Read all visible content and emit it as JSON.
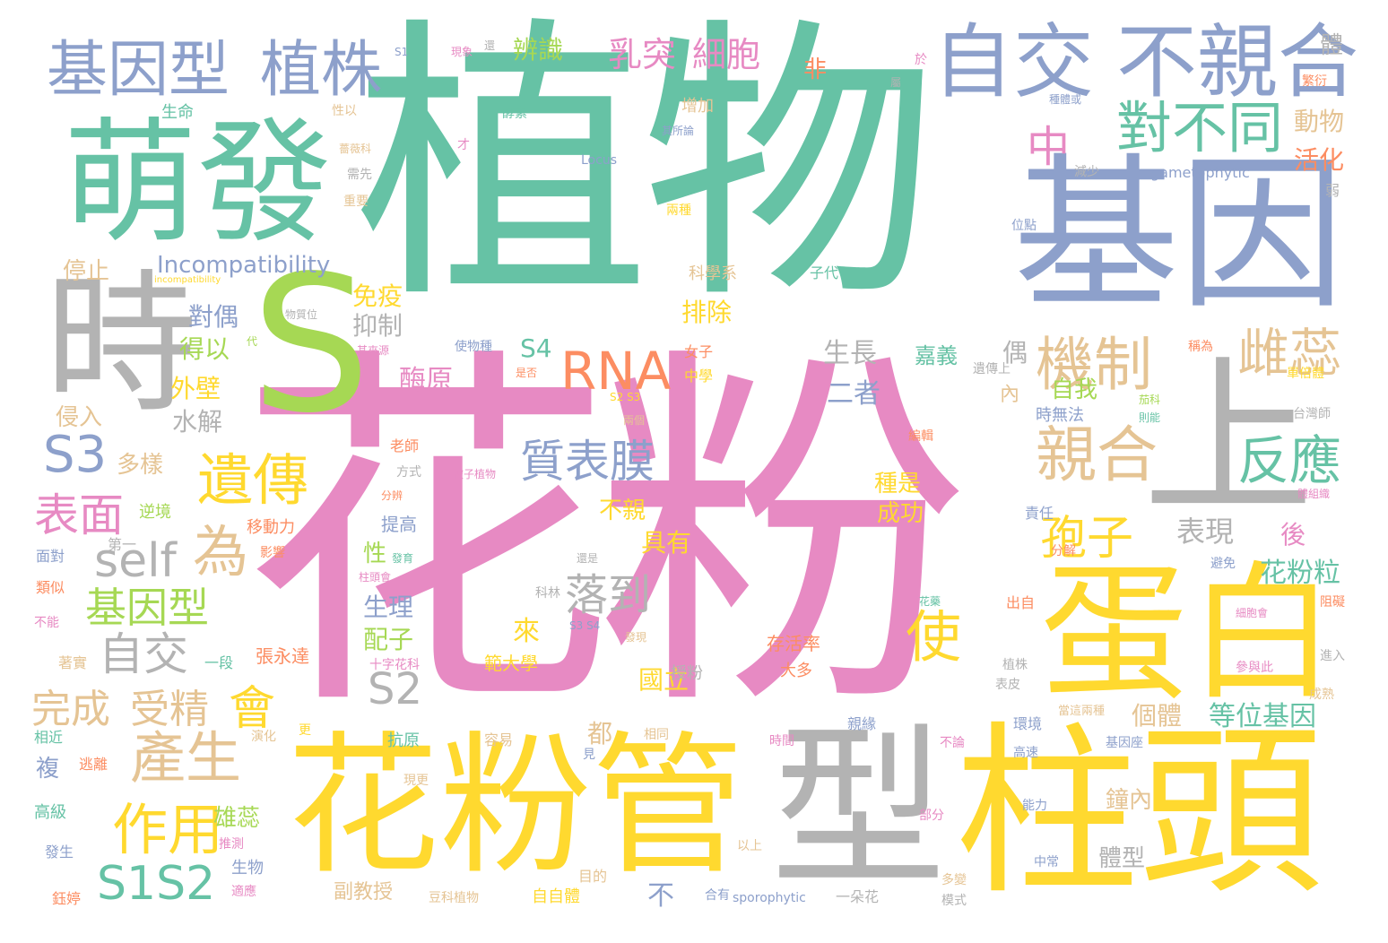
{
  "palette": {
    "green": "#66c2a5",
    "pink": "#e78ac3",
    "yellow": "#ffd92f",
    "gray": "#b3b3b3",
    "blue": "#8da0cb",
    "lime": "#a6d854",
    "orange": "#fc8d62",
    "tan": "#e5c494"
  },
  "words": [
    {
      "text": "植物",
      "c": "green"
    },
    {
      "text": "花粉",
      "c": "pink"
    },
    {
      "text": "基因",
      "c": "blue"
    },
    {
      "text": "花粉管",
      "c": "yellow"
    },
    {
      "text": "柱頭",
      "c": "yellow"
    },
    {
      "text": "型",
      "c": "gray"
    },
    {
      "text": "蛋白",
      "c": "yellow"
    },
    {
      "text": "萌發",
      "c": "green"
    },
    {
      "text": "時",
      "c": "gray"
    },
    {
      "text": "S",
      "c": "lime"
    },
    {
      "text": "上",
      "c": "gray"
    },
    {
      "text": "自交",
      "c": "blue"
    },
    {
      "text": "不親合",
      "c": "blue"
    },
    {
      "text": "基因型",
      "c": "blue"
    },
    {
      "text": "植株",
      "c": "blue"
    },
    {
      "text": "對不同",
      "c": "green"
    },
    {
      "text": "機制",
      "c": "tan"
    },
    {
      "text": "雌蕊",
      "c": "tan"
    },
    {
      "text": "親合",
      "c": "tan"
    },
    {
      "text": "反應",
      "c": "green"
    },
    {
      "text": "RNA",
      "c": "orange"
    },
    {
      "text": "遺傳",
      "c": "yellow"
    },
    {
      "text": "質表膜",
      "c": "blue"
    },
    {
      "text": "孢子",
      "c": "yellow"
    },
    {
      "text": "產生",
      "c": "tan"
    },
    {
      "text": "作用",
      "c": "yellow"
    },
    {
      "text": "S1S2",
      "c": "green"
    },
    {
      "text": "S3",
      "c": "blue"
    },
    {
      "text": "表面",
      "c": "pink"
    },
    {
      "text": "self",
      "c": "gray"
    },
    {
      "text": "為",
      "c": "tan"
    },
    {
      "text": "基因型",
      "c": "lime"
    },
    {
      "text": "自交",
      "c": "gray"
    },
    {
      "text": "會",
      "c": "yellow"
    },
    {
      "text": "S2",
      "c": "gray"
    },
    {
      "text": "落到",
      "c": "gray"
    },
    {
      "text": "使",
      "c": "yellow"
    },
    {
      "text": "完成",
      "c": "tan"
    },
    {
      "text": "受精",
      "c": "tan"
    },
    {
      "text": "中",
      "c": "pink"
    },
    {
      "text": "乳突",
      "c": "pink"
    },
    {
      "text": "細胞",
      "c": "pink"
    },
    {
      "text": "Incompatibility",
      "c": "blue"
    },
    {
      "text": "等位基因",
      "c": "green"
    },
    {
      "text": "花粉粒",
      "c": "green"
    },
    {
      "text": "表現",
      "c": "gray"
    },
    {
      "text": "生長",
      "c": "gray"
    },
    {
      "text": "二者",
      "c": "blue"
    },
    {
      "text": "辨識",
      "c": "lime"
    },
    {
      "text": "動物",
      "c": "tan"
    },
    {
      "text": "活化",
      "c": "orange"
    },
    {
      "text": "免疫",
      "c": "yellow"
    },
    {
      "text": "抑制",
      "c": "gray"
    },
    {
      "text": "排除",
      "c": "yellow"
    },
    {
      "text": "酶原",
      "c": "pink"
    },
    {
      "text": "S4",
      "c": "green"
    },
    {
      "text": "對偶",
      "c": "blue"
    },
    {
      "text": "得以",
      "c": "lime"
    },
    {
      "text": "外壁",
      "c": "yellow"
    },
    {
      "text": "水解",
      "c": "gray"
    },
    {
      "text": "侵入",
      "c": "tan"
    },
    {
      "text": "多樣",
      "c": "tan"
    },
    {
      "text": "停止",
      "c": "tan"
    },
    {
      "text": "具有",
      "c": "yellow"
    },
    {
      "text": "不親",
      "c": "yellow"
    },
    {
      "text": "生理",
      "c": "blue"
    },
    {
      "text": "配子",
      "c": "lime"
    },
    {
      "text": "來",
      "c": "yellow"
    },
    {
      "text": "個體",
      "c": "tan"
    },
    {
      "text": "國立",
      "c": "yellow"
    },
    {
      "text": "嘉義",
      "c": "green"
    },
    {
      "text": "自我",
      "c": "lime"
    },
    {
      "text": "雄蕊",
      "c": "lime"
    },
    {
      "text": "成功",
      "c": "yellow"
    },
    {
      "text": "種是",
      "c": "yellow"
    },
    {
      "text": "鐘內",
      "c": "tan"
    },
    {
      "text": "體型",
      "c": "gray"
    },
    {
      "text": "副教授",
      "c": "tan"
    },
    {
      "text": "生物",
      "c": "blue"
    },
    {
      "text": "張永達",
      "c": "orange"
    },
    {
      "text": "存活率",
      "c": "orange"
    },
    {
      "text": "大多",
      "c": "orange"
    },
    {
      "text": "範大學",
      "c": "yellow"
    },
    {
      "text": "十字花科",
      "c": "pink"
    },
    {
      "text": "gametophytic",
      "c": "blue"
    },
    {
      "text": "sporophytic",
      "c": "blue"
    },
    {
      "text": "Locus",
      "c": "blue"
    },
    {
      "text": "incompatibility",
      "c": "yellow"
    },
    {
      "text": "偶",
      "c": "gray"
    },
    {
      "text": "內",
      "c": "tan"
    },
    {
      "text": "都",
      "c": "tan"
    },
    {
      "text": "複",
      "c": "blue"
    },
    {
      "text": "不",
      "c": "blue"
    },
    {
      "text": "後",
      "c": "pink"
    },
    {
      "text": "性",
      "c": "lime"
    },
    {
      "text": "非",
      "c": "orange"
    },
    {
      "text": "體",
      "c": "gray"
    },
    {
      "text": "時無法",
      "c": "blue"
    },
    {
      "text": "責任",
      "c": "blue"
    },
    {
      "text": "提高",
      "c": "blue"
    },
    {
      "text": "移動力",
      "c": "orange"
    },
    {
      "text": "逆境",
      "c": "lime"
    },
    {
      "text": "第一",
      "c": "gray"
    },
    {
      "text": "影響",
      "c": "orange"
    },
    {
      "text": "面對",
      "c": "blue"
    },
    {
      "text": "類似",
      "c": "orange"
    },
    {
      "text": "不能",
      "c": "pink"
    },
    {
      "text": "著實",
      "c": "tan"
    },
    {
      "text": "一段",
      "c": "green"
    },
    {
      "text": "相近",
      "c": "green"
    },
    {
      "text": "逃離",
      "c": "orange"
    },
    {
      "text": "高級",
      "c": "green"
    },
    {
      "text": "發生",
      "c": "blue"
    },
    {
      "text": "鈺婷",
      "c": "orange"
    },
    {
      "text": "適應",
      "c": "pink"
    },
    {
      "text": "推測",
      "c": "pink"
    },
    {
      "text": "演化",
      "c": "tan"
    },
    {
      "text": "更",
      "c": "yellow"
    },
    {
      "text": "抗原",
      "c": "green"
    },
    {
      "text": "容易",
      "c": "tan"
    },
    {
      "text": "現更",
      "c": "tan"
    },
    {
      "text": "見",
      "c": "blue"
    },
    {
      "text": "相同",
      "c": "tan"
    },
    {
      "text": "授粉",
      "c": "gray"
    },
    {
      "text": "時間",
      "c": "pink"
    },
    {
      "text": "親緣",
      "c": "blue"
    },
    {
      "text": "不論",
      "c": "pink"
    },
    {
      "text": "高速",
      "c": "blue"
    },
    {
      "text": "基因座",
      "c": "blue"
    },
    {
      "text": "部分",
      "c": "pink"
    },
    {
      "text": "能力",
      "c": "blue"
    },
    {
      "text": "以上",
      "c": "tan"
    },
    {
      "text": "中常",
      "c": "blue"
    },
    {
      "text": "一朵花",
      "c": "gray"
    },
    {
      "text": "合有",
      "c": "blue"
    },
    {
      "text": "多變",
      "c": "tan"
    },
    {
      "text": "模式",
      "c": "gray"
    },
    {
      "text": "自自體",
      "c": "yellow"
    },
    {
      "text": "目的",
      "c": "tan"
    },
    {
      "text": "豆科植物",
      "c": "tan"
    },
    {
      "text": "當這兩種",
      "c": "tan"
    },
    {
      "text": "環境",
      "c": "blue"
    },
    {
      "text": "表皮",
      "c": "gray"
    },
    {
      "text": "植株",
      "c": "gray"
    },
    {
      "text": "參與此",
      "c": "pink"
    },
    {
      "text": "進入",
      "c": "gray"
    },
    {
      "text": "成熟",
      "c": "tan"
    },
    {
      "text": "細胞會",
      "c": "pink"
    },
    {
      "text": "阻礙",
      "c": "orange"
    },
    {
      "text": "避免",
      "c": "blue"
    },
    {
      "text": "分解",
      "c": "orange"
    },
    {
      "text": "體組織",
      "c": "pink"
    },
    {
      "text": "台灣師",
      "c": "gray"
    },
    {
      "text": "茄科",
      "c": "lime"
    },
    {
      "text": "則能",
      "c": "green"
    },
    {
      "text": "單倍體",
      "c": "yellow"
    },
    {
      "text": "稱為",
      "c": "orange"
    },
    {
      "text": "遺傳上",
      "c": "gray"
    },
    {
      "text": "弱",
      "c": "gray"
    },
    {
      "text": "繁衍",
      "c": "orange"
    },
    {
      "text": "種體或",
      "c": "blue"
    },
    {
      "text": "屬",
      "c": "gray"
    },
    {
      "text": "於",
      "c": "pink"
    },
    {
      "text": "增加",
      "c": "tan"
    },
    {
      "text": "其所論",
      "c": "blue"
    },
    {
      "text": "減少",
      "c": "gray"
    },
    {
      "text": "位點",
      "c": "blue"
    },
    {
      "text": "子代",
      "c": "green"
    },
    {
      "text": "科學系",
      "c": "tan"
    },
    {
      "text": "兩種",
      "c": "yellow"
    },
    {
      "text": "女子",
      "c": "orange"
    },
    {
      "text": "中學",
      "c": "yellow"
    },
    {
      "text": "S2 S3",
      "c": "yellow"
    },
    {
      "text": "兩個",
      "c": "tan"
    },
    {
      "text": "是否",
      "c": "orange"
    },
    {
      "text": "被子植物",
      "c": "pink"
    },
    {
      "text": "編輯",
      "c": "orange"
    },
    {
      "text": "方式",
      "c": "gray"
    },
    {
      "text": "分辨",
      "c": "orange"
    },
    {
      "text": "還是",
      "c": "gray"
    },
    {
      "text": "科林",
      "c": "gray"
    },
    {
      "text": "S3 S4",
      "c": "blue"
    },
    {
      "text": "發現",
      "c": "tan"
    },
    {
      "text": "發育",
      "c": "green"
    },
    {
      "text": "柱頭會",
      "c": "pink"
    },
    {
      "text": "老師",
      "c": "orange"
    },
    {
      "text": "花藥",
      "c": "green"
    },
    {
      "text": "出自",
      "c": "orange"
    },
    {
      "text": "使物種",
      "c": "blue"
    },
    {
      "text": "其來源",
      "c": "pink"
    },
    {
      "text": "物質位",
      "c": "gray"
    },
    {
      "text": "代",
      "c": "lime"
    },
    {
      "text": "酵素",
      "c": "green"
    },
    {
      "text": "S1",
      "c": "blue"
    },
    {
      "text": "現象",
      "c": "pink"
    },
    {
      "text": "還",
      "c": "gray"
    },
    {
      "text": "生命",
      "c": "green"
    },
    {
      "text": "性以",
      "c": "tan"
    },
    {
      "text": "薔薇科",
      "c": "tan"
    },
    {
      "text": "才",
      "c": "pink"
    },
    {
      "text": "需先",
      "c": "gray"
    },
    {
      "text": "重要",
      "c": "tan"
    }
  ]
}
